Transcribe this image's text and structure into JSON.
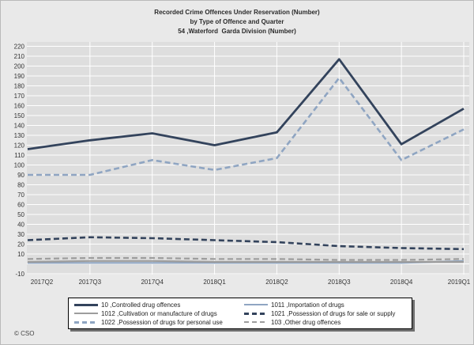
{
  "title": {
    "line1": "Recorded Crime Offences Under Reservation (Number)",
    "line2": "by Type of Offence and Quarter",
    "line3": "54 ,Waterford  Garda Division (Number)"
  },
  "footer": {
    "copyright": "© CSO"
  },
  "colors": {
    "canvas_bg": "#e9e9e9",
    "plot_bg": "#dedede",
    "gridline": "#ffffff",
    "navy": "#33435c",
    "light_blue": "#8fa5c2",
    "gray": "#9d9d9d"
  },
  "chart_data": {
    "type": "line",
    "title": "Recorded Crime Offences Under Reservation (Number) by Type of Offence and Quarter - 54 ,Waterford Garda Division (Number)",
    "xlabel": "",
    "ylabel": "",
    "categories": [
      "2017Q2",
      "2017Q3",
      "2017Q4",
      "2018Q1",
      "2018Q2",
      "2018Q3",
      "2018Q4",
      "2019Q1"
    ],
    "series": [
      {
        "id": "10",
        "label": "10 ,Controlled drug offences",
        "color": "#33435c",
        "style": "solid",
        "width": 2.8,
        "values": [
          116,
          125,
          132,
          120,
          133,
          207,
          121,
          157
        ]
      },
      {
        "id": "1011",
        "label": "1011 ,Importation of drugs",
        "color": "#8fa5c2",
        "style": "solid",
        "width": 2.2,
        "values": [
          1,
          1,
          1,
          1,
          1,
          1,
          1,
          3
        ]
      },
      {
        "id": "1012",
        "label": "1012 ,Cultivation or manufacture of drugs",
        "color": "#9d9d9d",
        "style": "solid",
        "width": 2.2,
        "values": [
          2,
          3,
          3,
          2,
          2,
          2,
          2,
          2
        ]
      },
      {
        "id": "1021",
        "label": "1021 ,Possession of drugs for sale or supply",
        "color": "#33435c",
        "style": "dashed",
        "width": 2.6,
        "values": [
          24,
          27,
          26,
          24,
          22,
          18,
          16,
          15
        ]
      },
      {
        "id": "1022",
        "label": "1022 ,Possession of drugs for personal use",
        "color": "#8fa5c2",
        "style": "dashed",
        "width": 2.6,
        "values": [
          90,
          90,
          105,
          95,
          107,
          188,
          105,
          136
        ]
      },
      {
        "id": "103",
        "label": "103 ,Other drug offences",
        "color": "#9d9d9d",
        "style": "dashed",
        "width": 2.2,
        "values": [
          5,
          6,
          6,
          5,
          5,
          4,
          4,
          5
        ]
      }
    ],
    "y_axis": {
      "min": -10,
      "max": 220,
      "grid_step": 10,
      "tick_labels": [
        220,
        210,
        200,
        190,
        180,
        170,
        160,
        150,
        140,
        130,
        120,
        110,
        100,
        90,
        80,
        70,
        60,
        50,
        40,
        30,
        20,
        10,
        -10
      ]
    },
    "ylim": [
      -10,
      220
    ],
    "grid": true,
    "legend_position": "bottom"
  }
}
